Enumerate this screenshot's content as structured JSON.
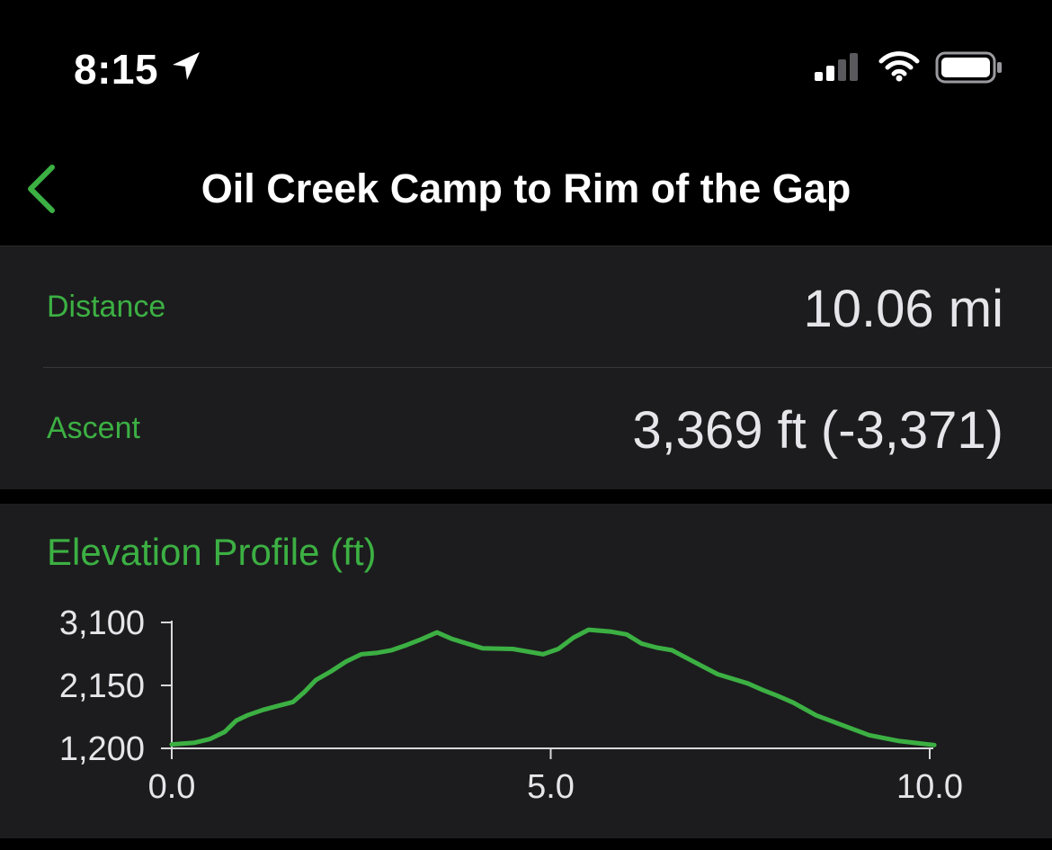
{
  "status_bar": {
    "time": "8:15",
    "icons": [
      "location-arrow-icon",
      "cellular-signal-icon",
      "wifi-icon",
      "battery-icon"
    ]
  },
  "nav": {
    "back_icon": "chevron-left-icon",
    "title": "Oil Creek Camp to Rim of the Gap"
  },
  "stats": [
    {
      "label": "Distance",
      "value": "10.06 mi"
    },
    {
      "label": "Ascent",
      "value": "3,369 ft (-3,371)"
    }
  ],
  "elevation": {
    "title": "Elevation Profile (ft)"
  },
  "colors": {
    "accent": "#3cb043",
    "background": "#000000",
    "card": "#1c1c1e",
    "value_text": "#e5e5ea"
  },
  "chart_data": {
    "type": "line",
    "title": "Elevation Profile (ft)",
    "xlabel": "",
    "ylabel": "",
    "xlim": [
      0,
      10
    ],
    "ylim": [
      1200,
      3100
    ],
    "x_ticks": [
      0,
      5,
      10
    ],
    "x_tick_labels": [
      "0.0",
      "5.0",
      "10.0"
    ],
    "y_ticks": [
      1200,
      2150,
      3100
    ],
    "y_tick_labels": [
      "1,200",
      "2,150",
      "3,100"
    ],
    "grid": false,
    "series": [
      {
        "color": "#3cb043",
        "x": [
          0,
          0.3,
          0.5,
          0.7,
          0.85,
          1.0,
          1.2,
          1.4,
          1.6,
          1.75,
          1.9,
          2.1,
          2.3,
          2.5,
          2.7,
          2.9,
          3.1,
          3.3,
          3.5,
          3.7,
          4.1,
          4.5,
          4.9,
          5.1,
          5.3,
          5.5,
          5.8,
          6.0,
          6.2,
          6.4,
          6.6,
          6.8,
          7.2,
          7.6,
          7.8,
          8.0,
          8.2,
          8.5,
          8.8,
          9.2,
          9.6,
          9.9,
          10.06
        ],
        "y": [
          1260,
          1285,
          1340,
          1450,
          1620,
          1700,
          1780,
          1840,
          1900,
          2050,
          2230,
          2360,
          2510,
          2620,
          2640,
          2680,
          2760,
          2850,
          2950,
          2850,
          2710,
          2700,
          2620,
          2700,
          2870,
          2990,
          2960,
          2920,
          2780,
          2720,
          2680,
          2560,
          2320,
          2180,
          2080,
          1990,
          1890,
          1700,
          1570,
          1400,
          1310,
          1270,
          1250
        ]
      }
    ]
  }
}
